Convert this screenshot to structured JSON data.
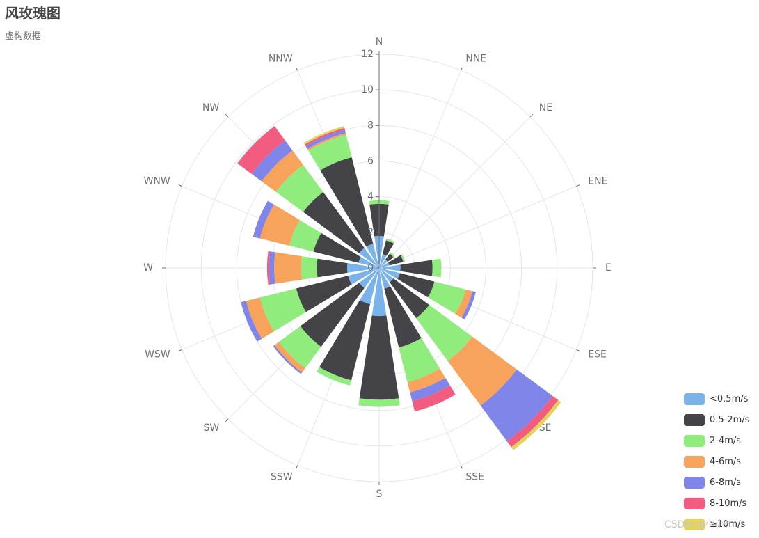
{
  "title": "风玫瑰图",
  "subtitle": "虚构数据",
  "watermark": "CSDN @小小*",
  "colors": [
    "#7ab3ea",
    "#434348",
    "#90ed7d",
    "#f7a35c",
    "#8085e9",
    "#f15c80",
    "#e4d354"
  ],
  "legend_placement": "bottom-right",
  "chart_data": {
    "type": "polar-stacked-bar",
    "title": "风玫瑰图",
    "subtitle": "虚构数据",
    "directions": [
      "N",
      "NNE",
      "NE",
      "ENE",
      "E",
      "ESE",
      "SE",
      "SSE",
      "S",
      "SSW",
      "SW",
      "WSW",
      "W",
      "WNW",
      "NW",
      "NNW"
    ],
    "radial_axis": {
      "min": 0,
      "max": 12,
      "ticks": [
        0,
        2,
        4,
        6,
        8,
        10,
        12
      ]
    },
    "series": [
      {
        "name": "<0.5m/s",
        "values": [
          1.8,
          0.8,
          0.6,
          0.6,
          1.2,
          1.2,
          1.0,
          1.2,
          2.7,
          2.1,
          1.4,
          1.8,
          1.8,
          1.2,
          1.4,
          1.4
        ]
      },
      {
        "name": "0.5-2m/s",
        "values": [
          1.8,
          0.8,
          0.4,
          0.8,
          1.8,
          2.0,
          2.5,
          3.4,
          4.7,
          4.4,
          4.1,
          3.0,
          1.7,
          2.6,
          3.9,
          5.0
        ]
      },
      {
        "name": "2-4m/s",
        "values": [
          0.2,
          0.1,
          0.1,
          0.1,
          0.5,
          1.8,
          3.0,
          2.0,
          0.4,
          0.3,
          1.5,
          2.1,
          0.9,
          1.4,
          1.9,
          1.3
        ]
      },
      {
        "name": "4-6m/s",
        "values": [
          0,
          0,
          0,
          0,
          0,
          0.4,
          3.1,
          0.6,
          0,
          0,
          0.3,
          0.8,
          1.5,
          1.7,
          1.0,
          0.1
        ]
      },
      {
        "name": "6-8m/s",
        "values": [
          0,
          0,
          0,
          0,
          0,
          0.2,
          2.5,
          0.5,
          0,
          0,
          0.1,
          0.3,
          0.3,
          0.4,
          0.7,
          0.2
        ]
      },
      {
        "name": "8-10m/s",
        "values": [
          0,
          0,
          0,
          0,
          0,
          0,
          0.4,
          0.6,
          0,
          0,
          0,
          0,
          0.1,
          0,
          1.0,
          0.1
        ]
      },
      {
        "name": "≥10m/s",
        "values": [
          0,
          0,
          0,
          0,
          0,
          0,
          0.2,
          0,
          0,
          0,
          0,
          0,
          0,
          0,
          0,
          0.1
        ]
      }
    ]
  }
}
